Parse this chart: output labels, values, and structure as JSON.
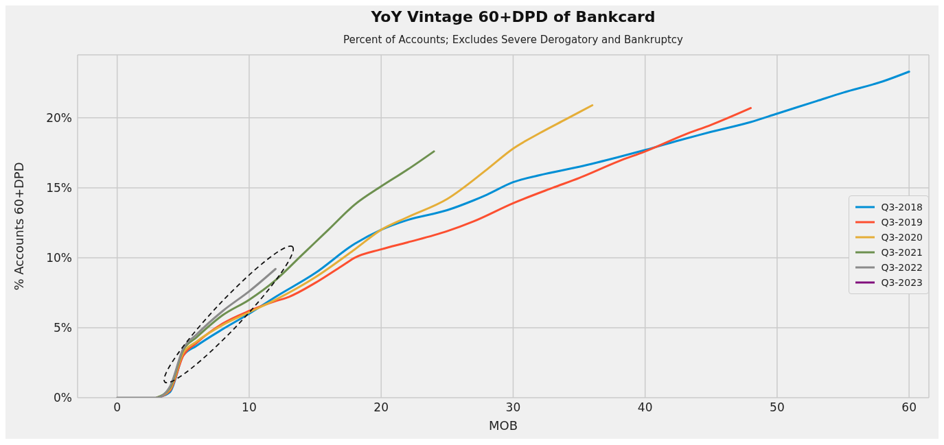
{
  "chart_data": {
    "type": "line",
    "title": "YoY Vintage 60+DPD of Bankcard",
    "subtitle": "Percent of Accounts; Excludes Severe Derogatory and Bankruptcy",
    "xlabel": "MOB",
    "ylabel": "% Accounts 60+DPD",
    "xlim": [
      -3,
      61.5
    ],
    "xticks": [
      0,
      10,
      20,
      30,
      40,
      50,
      60
    ],
    "ylim": [
      0,
      24.5
    ],
    "yticks": [
      {
        "value": 0,
        "label": "0%"
      },
      {
        "value": 5,
        "label": "5%"
      },
      {
        "value": 10,
        "label": "10%"
      },
      {
        "value": 15,
        "label": "15%"
      },
      {
        "value": 20,
        "label": "20%"
      }
    ],
    "grid": true,
    "legend": "right",
    "marker": "none",
    "line_style": "solid",
    "series": [
      {
        "name": "Q3-2018",
        "color": "#008fd5",
        "x": [
          3,
          4,
          5,
          6,
          8,
          10,
          12,
          15,
          18,
          20,
          22,
          25,
          27,
          28,
          30,
          32,
          35,
          38,
          40,
          43,
          45,
          48,
          50,
          53,
          55,
          58,
          60
        ],
        "values": [
          0,
          0.4,
          3.0,
          3.7,
          4.9,
          6.0,
          7.2,
          8.9,
          11.0,
          12.0,
          12.7,
          13.4,
          14.1,
          14.5,
          15.4,
          15.9,
          16.5,
          17.2,
          17.7,
          18.5,
          19.0,
          19.7,
          20.3,
          21.2,
          21.8,
          22.6,
          23.3
        ]
      },
      {
        "name": "Q3-2019",
        "color": "#fc4f30",
        "x": [
          3,
          4,
          5,
          6,
          8,
          10,
          12,
          13,
          15,
          17,
          18,
          20,
          22,
          25,
          27,
          30,
          33,
          35,
          38,
          40,
          43,
          45,
          48
        ],
        "values": [
          0,
          0.5,
          3.0,
          3.9,
          5.3,
          6.2,
          6.9,
          7.2,
          8.2,
          9.4,
          10.0,
          10.6,
          11.1,
          11.9,
          12.6,
          13.9,
          15.0,
          15.7,
          16.9,
          17.6,
          18.8,
          19.5,
          20.7
        ]
      },
      {
        "name": "Q3-2020",
        "color": "#e5ae38",
        "x": [
          3,
          4,
          5,
          6,
          8,
          10,
          12,
          15,
          18,
          20,
          22,
          25,
          28,
          30,
          32,
          34,
          36
        ],
        "values": [
          0,
          0.6,
          3.2,
          4.0,
          5.2,
          6.1,
          7.0,
          8.6,
          10.6,
          12.0,
          12.9,
          14.2,
          16.3,
          17.8,
          18.9,
          19.9,
          20.9
        ]
      },
      {
        "name": "Q3-2021",
        "color": "#6d904f",
        "x": [
          3,
          4,
          5,
          6,
          8,
          10,
          12,
          14,
          16,
          18,
          20,
          22,
          24
        ],
        "values": [
          0,
          0.7,
          3.4,
          4.3,
          5.9,
          7.0,
          8.4,
          10.2,
          12.0,
          13.8,
          15.1,
          16.3,
          17.6
        ]
      },
      {
        "name": "Q3-2022",
        "color": "#8b8b8b",
        "x": [
          0,
          1,
          2,
          3,
          4,
          5,
          6,
          8,
          10,
          12
        ],
        "values": [
          0,
          0,
          0,
          0,
          0.8,
          3.5,
          4.5,
          6.2,
          7.6,
          9.2
        ]
      },
      {
        "name": "Q3-2023",
        "color": "#810f7c"
      }
    ]
  }
}
